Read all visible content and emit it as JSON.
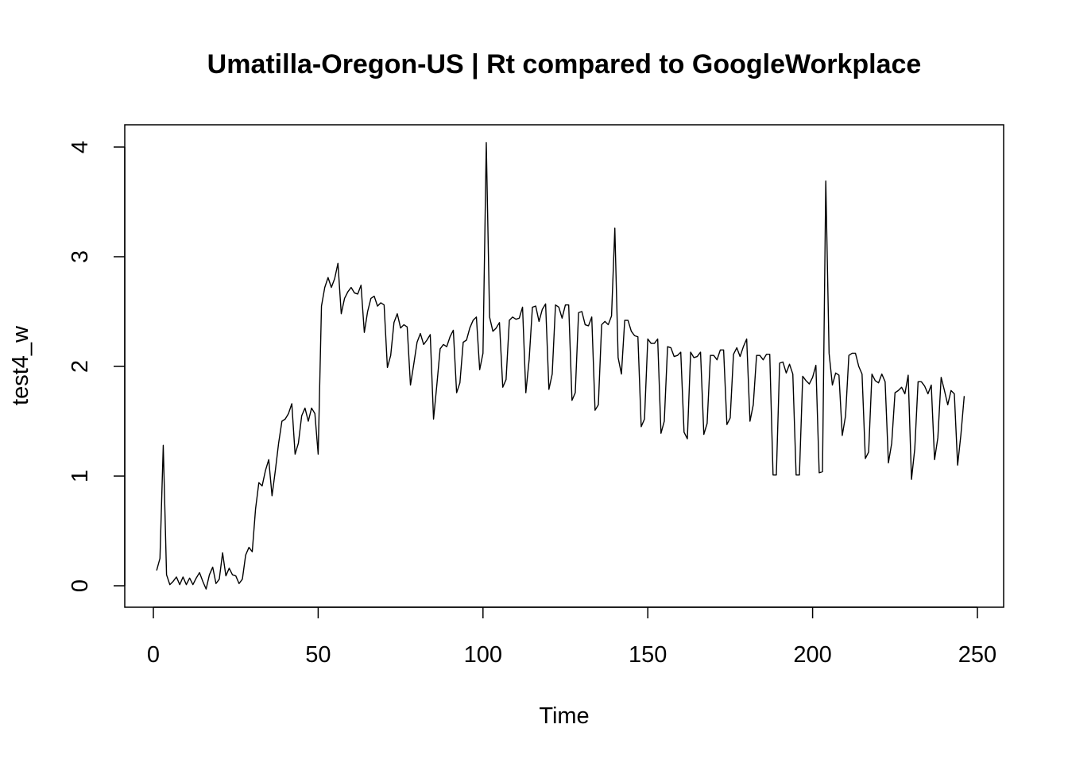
{
  "chart_data": {
    "type": "line",
    "title": "Umatilla-Oregon-US | Rt compared to GoogleWorkplace",
    "xlabel": "Time",
    "ylabel": "test4_w",
    "xlim": [
      0,
      250
    ],
    "ylim": [
      0,
      4
    ],
    "x_ticks": [
      "0",
      "50",
      "100",
      "150",
      "200",
      "250"
    ],
    "y_ticks": [
      "0",
      "1",
      "2",
      "3",
      "4"
    ],
    "grid": false,
    "x_start": 1,
    "series": [
      {
        "color": "#000000",
        "values": [
          0.14,
          0.25,
          1.28,
          0.1,
          0.01,
          0.04,
          0.08,
          0.01,
          0.08,
          0.01,
          0.07,
          0.01,
          0.07,
          0.12,
          0.04,
          -0.03,
          0.1,
          0.17,
          0.02,
          0.06,
          0.3,
          0.09,
          0.16,
          0.1,
          0.09,
          0.02,
          0.06,
          0.28,
          0.35,
          0.31,
          0.7,
          0.94,
          0.91,
          1.05,
          1.15,
          0.82,
          1.05,
          1.3,
          1.5,
          1.52,
          1.57,
          1.66,
          1.2,
          1.3,
          1.55,
          1.62,
          1.5,
          1.62,
          1.57,
          1.2,
          2.55,
          2.72,
          2.81,
          2.72,
          2.8,
          2.94,
          2.48,
          2.62,
          2.68,
          2.72,
          2.67,
          2.66,
          2.74,
          2.31,
          2.5,
          2.62,
          2.64,
          2.55,
          2.58,
          2.56,
          1.99,
          2.1,
          2.4,
          2.48,
          2.35,
          2.38,
          2.36,
          1.83,
          2.02,
          2.22,
          2.3,
          2.2,
          2.24,
          2.29,
          1.52,
          1.83,
          2.16,
          2.2,
          2.18,
          2.27,
          2.33,
          1.76,
          1.85,
          2.22,
          2.24,
          2.35,
          2.42,
          2.45,
          1.97,
          2.12,
          4.04,
          2.45,
          2.32,
          2.35,
          2.4,
          1.81,
          1.88,
          2.42,
          2.45,
          2.43,
          2.44,
          2.54,
          1.76,
          2.06,
          2.54,
          2.55,
          2.41,
          2.52,
          2.57,
          1.79,
          1.93,
          2.56,
          2.54,
          2.44,
          2.56,
          2.56,
          1.69,
          1.76,
          2.49,
          2.5,
          2.38,
          2.37,
          2.45,
          1.6,
          1.65,
          2.38,
          2.41,
          2.38,
          2.46,
          3.26,
          2.08,
          1.93,
          2.42,
          2.42,
          2.32,
          2.28,
          2.27,
          1.45,
          1.52,
          2.25,
          2.21,
          2.21,
          2.25,
          1.39,
          1.5,
          2.18,
          2.17,
          2.09,
          2.1,
          2.13,
          1.4,
          1.34,
          2.13,
          2.08,
          2.09,
          2.13,
          1.38,
          1.48,
          2.1,
          2.1,
          2.06,
          2.15,
          2.15,
          1.47,
          1.53,
          2.11,
          2.17,
          2.09,
          2.18,
          2.25,
          1.5,
          1.65,
          2.1,
          2.1,
          2.06,
          2.11,
          2.11,
          1.01,
          1.01,
          2.03,
          2.04,
          1.94,
          2.02,
          1.93,
          1.01,
          1.01,
          1.91,
          1.87,
          1.84,
          1.9,
          2.01,
          1.03,
          1.04,
          3.69,
          2.12,
          1.83,
          1.94,
          1.92,
          1.37,
          1.55,
          2.1,
          2.12,
          2.12,
          2.0,
          1.93,
          1.16,
          1.22,
          1.93,
          1.87,
          1.85,
          1.93,
          1.86,
          1.12,
          1.3,
          1.76,
          1.78,
          1.81,
          1.75,
          1.92,
          0.97,
          1.25,
          1.86,
          1.86,
          1.82,
          1.75,
          1.83,
          1.15,
          1.35,
          1.9,
          1.78,
          1.65,
          1.78,
          1.75,
          1.1,
          1.38,
          1.73
        ]
      }
    ]
  }
}
